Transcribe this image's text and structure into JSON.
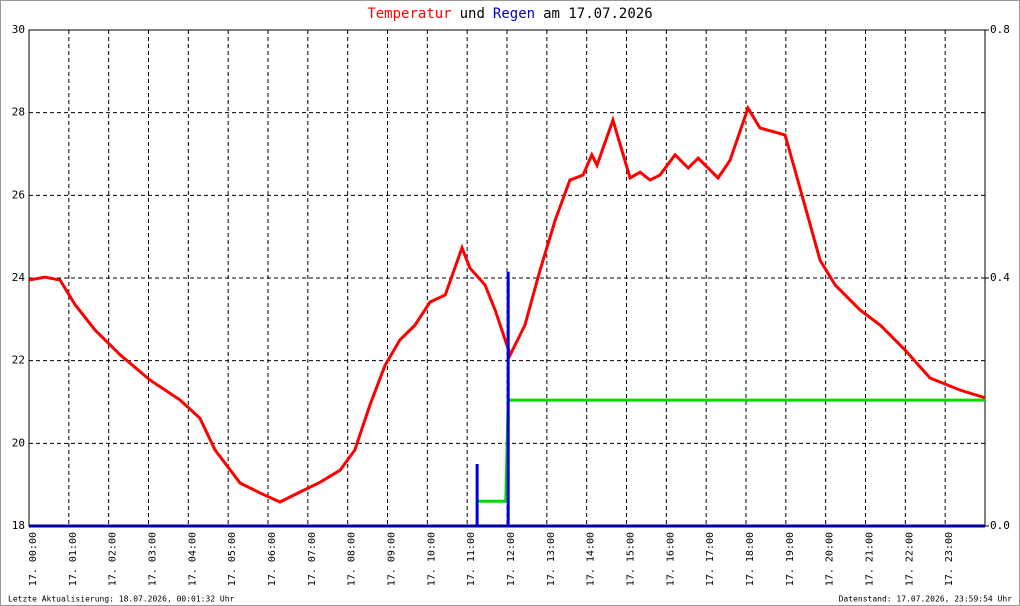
{
  "chart_data": {
    "type": "line",
    "title_parts": [
      {
        "text": "Temperatur",
        "color": "#ff0000"
      },
      {
        "text": "und",
        "color": "#000000"
      },
      {
        "text": "Regen",
        "color": "#0000cc"
      },
      {
        "text": "am 17.07.2026",
        "color": "#000000"
      }
    ],
    "footer_left": "Letzte Aktualisierung: 18.07.2026, 00:01:32 Uhr",
    "footer_right": "Datenstand: 17.07.2026, 23:59:54 Uhr",
    "xlim": [
      0,
      24
    ],
    "xticks": [
      {
        "value": 0,
        "label": "17. 00:00"
      },
      {
        "value": 1,
        "label": "17. 01:00"
      },
      {
        "value": 2,
        "label": "17. 02:00"
      },
      {
        "value": 3,
        "label": "17. 03:00"
      },
      {
        "value": 4,
        "label": "17. 04:00"
      },
      {
        "value": 5,
        "label": "17. 05:00"
      },
      {
        "value": 6,
        "label": "17. 06:00"
      },
      {
        "value": 7,
        "label": "17. 07:00"
      },
      {
        "value": 8,
        "label": "17. 08:00"
      },
      {
        "value": 9,
        "label": "17. 09:00"
      },
      {
        "value": 10,
        "label": "17. 10:00"
      },
      {
        "value": 11,
        "label": "17. 11:00"
      },
      {
        "value": 12,
        "label": "17. 12:00"
      },
      {
        "value": 13,
        "label": "17. 13:00"
      },
      {
        "value": 14,
        "label": "17. 14:00"
      },
      {
        "value": 15,
        "label": "17. 15:00"
      },
      {
        "value": 16,
        "label": "17. 16:00"
      },
      {
        "value": 17,
        "label": "17. 17:00"
      },
      {
        "value": 18,
        "label": "17. 18:00"
      },
      {
        "value": 19,
        "label": "17. 19:00"
      },
      {
        "value": 20,
        "label": "17. 20:00"
      },
      {
        "value": 21,
        "label": "17. 21:00"
      },
      {
        "value": 22,
        "label": "17. 22:00"
      },
      {
        "value": 23,
        "label": "17. 23:00"
      }
    ],
    "ylim": [
      18,
      30
    ],
    "yticks": [
      18,
      20,
      22,
      24,
      26,
      28,
      30
    ],
    "y2lim": [
      0,
      0.8
    ],
    "y2ticks": [
      {
        "value": 0,
        "label": "0.0"
      },
      0.4,
      {
        "value": 0.8,
        "label": "0.8"
      }
    ],
    "grid": true,
    "series": [
      {
        "color": "#ff0000",
        "type": "line",
        "x": [
          0,
          0.4,
          0.78,
          1.16,
          1.66,
          2.29,
          3.04,
          3.79,
          4.29,
          4.67,
          5.3,
          5.8,
          6.3,
          6.8,
          7.31,
          7.81,
          8.18,
          8.56,
          8.94,
          9.31,
          9.69,
          10.07,
          10.45,
          10.87,
          11.07,
          11.45,
          11.7,
          12.08,
          12.45,
          12.83,
          13.21,
          13.58,
          13.91,
          14.13,
          14.26,
          14.66,
          15.09,
          15.34,
          15.59,
          15.84,
          16.22,
          16.55,
          16.8,
          17.3,
          17.6,
          18.05,
          18.35,
          18.98,
          19.23,
          19.86,
          20.24,
          20.86,
          21.37,
          21.99,
          22.62,
          23.37,
          24
        ],
        "values": [
          23.95,
          24.02,
          23.95,
          23.35,
          22.74,
          22.14,
          21.53,
          21.05,
          20.61,
          19.84,
          19.04,
          18.8,
          18.58,
          18.82,
          19.06,
          19.35,
          19.84,
          20.93,
          21.89,
          22.5,
          22.86,
          23.42,
          23.59,
          24.73,
          24.24,
          23.83,
          23.23,
          22.14,
          22.86,
          24.19,
          25.4,
          26.37,
          26.49,
          26.98,
          26.73,
          27.82,
          26.42,
          26.56,
          26.37,
          26.49,
          26.98,
          26.66,
          26.9,
          26.42,
          26.85,
          28.11,
          27.63,
          27.46,
          26.61,
          24.43,
          23.83,
          23.23,
          22.86,
          22.26,
          21.58,
          21.29,
          21.1
        ]
      },
      {
        "color": "#00dd00",
        "type": "line",
        "axis": "y2",
        "x": [
          11.25,
          11.97,
          12.03,
          24
        ],
        "values": [
          0.04,
          0.04,
          0.203,
          0.203
        ]
      },
      {
        "color": "#0000dd",
        "type": "bar",
        "axis": "y2",
        "x": [
          11.25,
          12.03
        ],
        "values": [
          0.1,
          0.41
        ]
      }
    ]
  }
}
